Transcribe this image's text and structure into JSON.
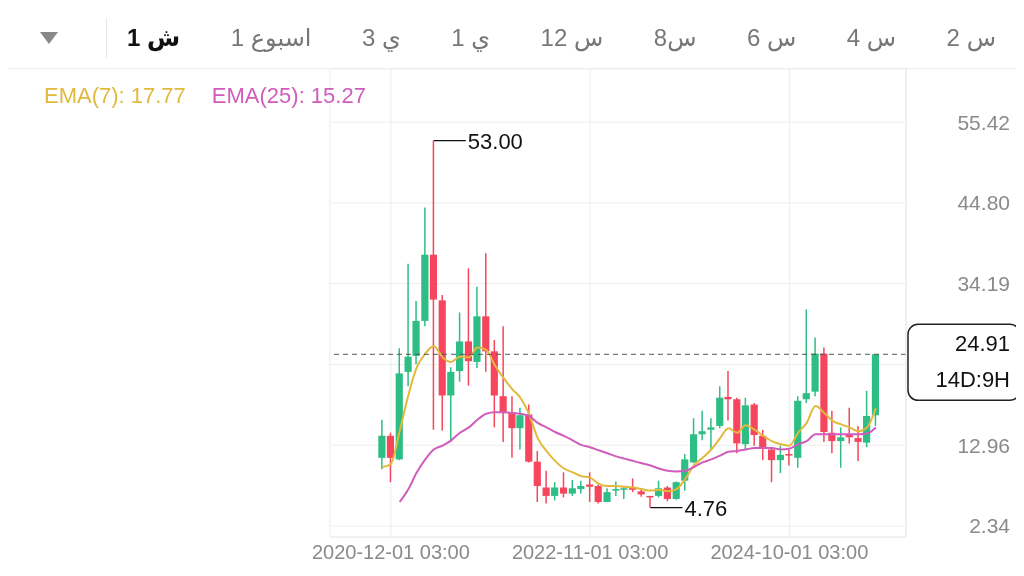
{
  "chart_data": {
    "type": "candlestick",
    "x": [
      "2020-11",
      "2020-12",
      "2021-01",
      "2021-02",
      "2021-03",
      "2021-04",
      "2021-05",
      "2021-06",
      "2021-07",
      "2021-08",
      "2021-09",
      "2021-10",
      "2021-11",
      "2021-12",
      "2022-01",
      "2022-02",
      "2022-03",
      "2022-04",
      "2022-05",
      "2022-06",
      "2022-07",
      "2022-08",
      "2022-09",
      "2022-10",
      "2022-11",
      "2022-12",
      "2023-01",
      "2023-02",
      "2023-03",
      "2023-04",
      "2023-05",
      "2023-06",
      "2023-07",
      "2023-08",
      "2023-09",
      "2023-10",
      "2023-11",
      "2023-12",
      "2024-01",
      "2024-02",
      "2024-03",
      "2024-04",
      "2024-05",
      "2024-06",
      "2024-07",
      "2024-08",
      "2024-09",
      "2024-10",
      "2024-11",
      "2024-12",
      "2025-01",
      "2025-02",
      "2025-03",
      "2025-04",
      "2025-05",
      "2025-06",
      "2025-07",
      "2025-08"
    ],
    "ohlc": [
      [
        11.3,
        16.3,
        9.8,
        14.2
      ],
      [
        14.2,
        14.6,
        8.1,
        11.3
      ],
      [
        11.1,
        25.7,
        11.0,
        22.4
      ],
      [
        22.6,
        36.8,
        20.7,
        24.6
      ],
      [
        24.7,
        31.9,
        23.6,
        29.3
      ],
      [
        29.3,
        44.2,
        28.6,
        38.0
      ],
      [
        38.0,
        53.0,
        15.0,
        32.1
      ],
      [
        32.0,
        32.7,
        14.9,
        19.5
      ],
      [
        19.5,
        23.2,
        13.4,
        22.6
      ],
      [
        22.7,
        30.4,
        21.3,
        26.6
      ],
      [
        26.6,
        36.2,
        20.8,
        24.0
      ],
      [
        23.9,
        33.8,
        23.1,
        29.9
      ],
      [
        29.9,
        38.2,
        22.6,
        25.3
      ],
      [
        25.3,
        26.8,
        15.3,
        19.5
      ],
      [
        19.4,
        28.6,
        13.4,
        17.3
      ],
      [
        17.3,
        19.4,
        11.3,
        15.2
      ],
      [
        15.2,
        17.9,
        12.4,
        16.9
      ],
      [
        17.0,
        18.3,
        10.7,
        10.8
      ],
      [
        10.8,
        12.2,
        5.5,
        7.6
      ],
      [
        7.4,
        9.6,
        5.3,
        6.3
      ],
      [
        6.3,
        8.1,
        5.7,
        7.4
      ],
      [
        7.4,
        9.4,
        6.1,
        6.6
      ],
      [
        6.6,
        8.4,
        6.3,
        7.3
      ],
      [
        7.2,
        8.3,
        6.6,
        7.6
      ],
      [
        7.8,
        9.4,
        5.5,
        7.5
      ],
      [
        7.6,
        7.8,
        5.3,
        5.5
      ],
      [
        5.5,
        7.3,
        5.5,
        6.8
      ],
      [
        7.0,
        8.2,
        6.3,
        7.2
      ],
      [
        7.2,
        7.6,
        5.9,
        7.3
      ],
      [
        7.4,
        8.6,
        6.8,
        7.1
      ],
      [
        6.9,
        7.2,
        6.2,
        6.5
      ],
      [
        6.3,
        6.3,
        4.76,
        6.1
      ],
      [
        6.3,
        8.3,
        6.1,
        7.3
      ],
      [
        7.4,
        7.6,
        5.6,
        5.9
      ],
      [
        5.9,
        8.2,
        5.8,
        8.1
      ],
      [
        8.3,
        11.8,
        7.0,
        11.1
      ],
      [
        10.7,
        16.5,
        10.6,
        14.4
      ],
      [
        14.4,
        17.5,
        13.6,
        14.8
      ],
      [
        15.0,
        16.5,
        12.4,
        15.3
      ],
      [
        15.5,
        20.7,
        15.2,
        19.2
      ],
      [
        19.3,
        22.7,
        16.2,
        19.0
      ],
      [
        19.0,
        19.2,
        11.9,
        13.2
      ],
      [
        13.1,
        19.2,
        12.4,
        18.2
      ],
      [
        18.3,
        18.5,
        12.9,
        14.3
      ],
      [
        14.2,
        15.0,
        11.0,
        12.7
      ],
      [
        12.4,
        12.6,
        8.1,
        11.0
      ],
      [
        11.0,
        12.9,
        9.3,
        11.7
      ],
      [
        11.8,
        12.6,
        10.3,
        11.6
      ],
      [
        11.3,
        19.4,
        10.0,
        18.8
      ],
      [
        19.0,
        30.8,
        18.5,
        19.8
      ],
      [
        20.0,
        27.1,
        19.4,
        25.0
      ],
      [
        25.0,
        25.8,
        13.4,
        14.7
      ],
      [
        14.6,
        17.5,
        11.9,
        13.5
      ],
      [
        13.5,
        15.3,
        10.0,
        14.0
      ],
      [
        14.4,
        17.9,
        13.2,
        14.0
      ],
      [
        13.9,
        15.5,
        10.9,
        13.4
      ],
      [
        13.3,
        20.1,
        12.7,
        16.8
      ],
      [
        16.9,
        24.91,
        15.5,
        24.91
      ]
    ],
    "colors": [
      "#2ebd85",
      "#f6465d",
      "#2ebd85",
      "#2ebd85",
      "#2ebd85",
      "#2ebd85",
      "#f6465d",
      "#f6465d",
      "#2ebd85",
      "#2ebd85",
      "#f6465d",
      "#2ebd85",
      "#f6465d",
      "#f6465d",
      "#f6465d",
      "#f6465d",
      "#2ebd85",
      "#f6465d",
      "#f6465d",
      "#f6465d",
      "#2ebd85",
      "#f6465d",
      "#2ebd85",
      "#2ebd85",
      "#f6465d",
      "#f6465d",
      "#2ebd85",
      "#2ebd85",
      "#2ebd85",
      "#f6465d",
      "#f6465d",
      "#f6465d",
      "#2ebd85",
      "#f6465d",
      "#2ebd85",
      "#2ebd85",
      "#2ebd85",
      "#2ebd85",
      "#2ebd85",
      "#2ebd85",
      "#f6465d",
      "#f6465d",
      "#2ebd85",
      "#f6465d",
      "#f6465d",
      "#f6465d",
      "#2ebd85",
      "#f6465d",
      "#2ebd85",
      "#2ebd85",
      "#2ebd85",
      "#f6465d",
      "#f6465d",
      "#2ebd85",
      "#f6465d",
      "#f6465d",
      "#2ebd85",
      "#2ebd85"
    ],
    "series": [
      {
        "name": "EMA(7): 17.77",
        "type": "line",
        "color": "#e2b93b",
        "values": [
          10.1,
          10.5,
          14.8,
          19.6,
          23.1,
          25.0,
          26.0,
          24.5,
          23.9,
          24.6,
          24.5,
          25.8,
          25.5,
          23.5,
          21.8,
          20.3,
          19.2,
          17.0,
          13.9,
          12.2,
          10.9,
          9.9,
          9.4,
          8.9,
          8.7,
          7.9,
          7.6,
          7.6,
          7.5,
          7.4,
          7.2,
          7.0,
          7.1,
          6.9,
          7.2,
          8.5,
          10.3,
          11.3,
          12.4,
          13.9,
          15.2,
          14.6,
          15.6,
          15.0,
          14.2,
          13.5,
          13.1,
          12.9,
          14.6,
          15.9,
          18.1,
          17.2,
          16.2,
          15.7,
          15.3,
          14.8,
          15.3,
          17.8
        ]
      },
      {
        "name": "EMA(25): 15.27",
        "type": "line",
        "color": "#d05cbb",
        "values": [
          null,
          null,
          5.5,
          7.2,
          9.3,
          11.1,
          12.4,
          12.9,
          13.6,
          14.6,
          15.3,
          16.3,
          17.1,
          17.3,
          17.3,
          17.2,
          17.1,
          16.8,
          15.9,
          15.3,
          14.7,
          14.2,
          13.6,
          13.0,
          12.7,
          12.3,
          11.9,
          11.5,
          11.2,
          10.9,
          10.6,
          10.3,
          9.9,
          9.6,
          9.5,
          9.6,
          10.1,
          10.7,
          11.1,
          11.6,
          12.1,
          12.2,
          12.4,
          12.6,
          12.6,
          12.6,
          12.4,
          12.5,
          13.1,
          13.5,
          14.4,
          14.4,
          14.4,
          14.4,
          14.4,
          14.4,
          14.5,
          15.3
        ]
      }
    ],
    "xlim": [
      "2020-05-01",
      "2025-11-15"
    ],
    "xticks": [
      {
        "value": "2020-12-01T03:00",
        "label": "2020-12-01 03:00"
      },
      {
        "value": "2022-11-01T03:00",
        "label": "2022-11-01 03:00"
      },
      {
        "value": "2024-10-01T03:00",
        "label": "2024-10-01 03:00"
      }
    ],
    "ylim": [
      0.9,
      62.4
    ],
    "yticks": [
      2.34,
      12.96,
      {
        "value": 23.57,
        "label": null
      },
      34.19,
      {
        "value": 44.8,
        "label": "44.80"
      },
      55.42
    ],
    "grid": true,
    "legend": "top left",
    "marker": "none",
    "line_style": "solid",
    "ref_lines": [
      {
        "axis": "y",
        "value": 24.91,
        "label": "24.91",
        "line_style": "dashed",
        "color": "#555555"
      }
    ],
    "annotations": [
      "1 ش",
      "1 اسبوع",
      "3 ي",
      "1 ي",
      "12 س",
      "8س",
      "6 س",
      "4 س",
      "2 س",
      {
        "text": "53.00",
        "x": "2021-05",
        "y": 53.0
      },
      {
        "text": "4.76",
        "x": "2023-06",
        "y": 4.76
      },
      "14D:9H"
    ]
  }
}
